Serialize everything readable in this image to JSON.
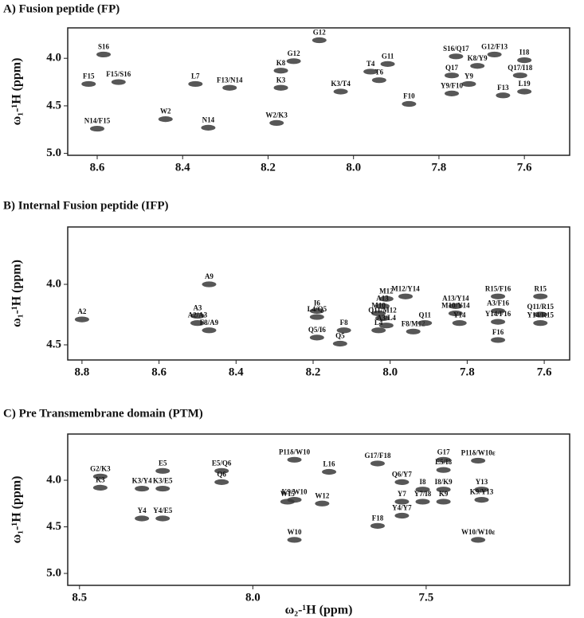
{
  "chart_data": [
    {
      "type": "scatter",
      "title": "A)  Fusion peptide (FP)",
      "y_label": "ω₁-¹H (ppm)",
      "x_inverted": true,
      "y_inverted": true,
      "color": "#3a3a3a",
      "xlim": [
        7.494,
        8.669
      ],
      "ylim": [
        3.68,
        5.02
      ],
      "xticks": [
        8.6,
        8.4,
        8.2,
        {
          "value": 8,
          "label": "8.0"
        },
        7.8,
        7.6
      ],
      "yticks": [
        {
          "value": 4,
          "label": "4.0"
        },
        4.5,
        {
          "value": 5,
          "label": "5.0"
        }
      ],
      "point_labels": [
        "G12",
        "S16/Q17",
        "G12/F13",
        "I18",
        "S16",
        "G12",
        "T4",
        "G11",
        "K8",
        "K8/Y9",
        "Q17",
        "Q17/I18",
        "T6",
        "K3",
        "L7",
        "F13/N14",
        "Y9",
        "F15",
        "F15/S16",
        "Y9/F10",
        "K3/T4",
        "L19",
        "F13",
        "F10",
        "W2",
        "N14",
        "W2/K3",
        "N14/F15"
      ],
      "x": [
        8.08,
        7.76,
        7.67,
        7.6,
        8.585,
        8.14,
        7.96,
        7.92,
        8.17,
        7.71,
        7.77,
        7.61,
        7.94,
        8.17,
        8.37,
        8.29,
        7.73,
        8.62,
        8.55,
        7.77,
        8.03,
        7.6,
        7.65,
        7.87,
        8.44,
        8.34,
        8.18,
        8.6
      ],
      "values": [
        3.81,
        3.98,
        3.96,
        4.02,
        3.96,
        4.03,
        4.14,
        4.06,
        4.13,
        4.08,
        4.18,
        4.18,
        4.23,
        4.31,
        4.27,
        4.31,
        4.27,
        4.27,
        4.25,
        4.37,
        4.35,
        4.35,
        4.39,
        4.48,
        4.64,
        4.73,
        4.68,
        4.74
      ]
    },
    {
      "type": "scatter",
      "title": "B)  Internal Fusion peptide (IFP)",
      "y_label": "ω₁-¹H (ppm)",
      "x_inverted": true,
      "y_inverted": true,
      "color": "#3a3a3a",
      "xlim": [
        7.534,
        8.837
      ],
      "ylim": [
        3.526,
        4.625
      ],
      "xticks": [
        8.8,
        8.6,
        8.4,
        8.2,
        {
          "value": 8,
          "label": "8.0"
        },
        7.8,
        7.6
      ],
      "yticks": [
        {
          "value": 4,
          "label": "4.0"
        },
        4.5
      ],
      "point_labels": [
        "A2",
        "A3",
        "A9",
        "A2/A3",
        "F8/A9",
        "I6",
        "L4/Q5",
        "F8",
        "Q5/I6",
        "Q5",
        "M12",
        "M12/Y14",
        "A13",
        "M10",
        "Q11/M12",
        "A3/L4",
        "L4",
        "F8/M12",
        "Q11",
        "A13/Y14",
        "M10/Y14",
        "Y14",
        "R15/F16",
        "A3/F16",
        "Y14/F16",
        "F16",
        "R15",
        "Q11/R15",
        "Y14/R15"
      ],
      "x": [
        8.8,
        8.5,
        8.47,
        8.5,
        8.47,
        8.19,
        8.19,
        8.12,
        8.19,
        8.13,
        8.01,
        7.96,
        8.02,
        8.03,
        8.02,
        8.01,
        8.03,
        7.94,
        7.91,
        7.83,
        7.83,
        7.82,
        7.72,
        7.72,
        7.72,
        7.72,
        7.61,
        7.61,
        7.61
      ],
      "values": [
        4.29,
        4.26,
        4.0,
        4.32,
        4.38,
        4.22,
        4.27,
        4.38,
        4.44,
        4.49,
        4.12,
        4.1,
        4.18,
        4.24,
        4.28,
        4.34,
        4.38,
        4.39,
        4.32,
        4.18,
        4.24,
        4.32,
        4.1,
        4.22,
        4.31,
        4.46,
        4.1,
        4.25,
        4.32
      ]
    },
    {
      "type": "scatter",
      "title": "C)  Pre Transmembrane domain (PTM)",
      "y_label": "ω₁-¹H (ppm)",
      "x_label": "ω₂-¹H  (ppm)",
      "x_inverted": true,
      "y_inverted": true,
      "color": "#3a3a3a",
      "xlim": [
        7.086,
        8.534
      ],
      "ylim": [
        3.504,
        5.128
      ],
      "xticks": [
        8.5,
        {
          "value": 8,
          "label": "8.0"
        },
        7.5
      ],
      "yticks": [
        {
          "value": 4,
          "label": "4.0"
        },
        4.5,
        {
          "value": 5,
          "label": "5.0"
        }
      ],
      "point_labels": [
        "G2/K3",
        "K3",
        "E5",
        "E5/Q6",
        "Q6",
        "K3/Y4",
        "K3/E5",
        "Y4",
        "Y4/E5",
        "P11δ/W10",
        "L16",
        "K9/W10",
        "W15",
        "W12",
        "W10",
        "G17/F18",
        "G17",
        "P11δ/W10ε",
        "E5/I8",
        "Q6/Y7",
        "I8",
        "I8/K9",
        "Y13",
        "Y7",
        "Y7/I8",
        "K9",
        "K9/Y13",
        "F18",
        "Y4/Y7",
        "W10/W10ε"
      ],
      "x": [
        8.44,
        8.44,
        8.26,
        8.09,
        8.09,
        8.32,
        8.26,
        8.32,
        8.26,
        7.88,
        7.78,
        7.88,
        7.9,
        7.8,
        7.88,
        7.64,
        7.45,
        7.35,
        7.45,
        7.57,
        7.51,
        7.45,
        7.34,
        7.57,
        7.51,
        7.45,
        7.34,
        7.64,
        7.57,
        7.35
      ],
      "values": [
        3.96,
        4.08,
        3.9,
        3.9,
        4.02,
        4.09,
        4.09,
        4.41,
        4.41,
        3.78,
        3.91,
        4.21,
        4.23,
        4.25,
        4.64,
        3.82,
        3.78,
        3.79,
        3.89,
        4.02,
        4.1,
        4.1,
        4.1,
        4.23,
        4.23,
        4.23,
        4.21,
        4.49,
        4.38,
        4.64
      ]
    }
  ]
}
